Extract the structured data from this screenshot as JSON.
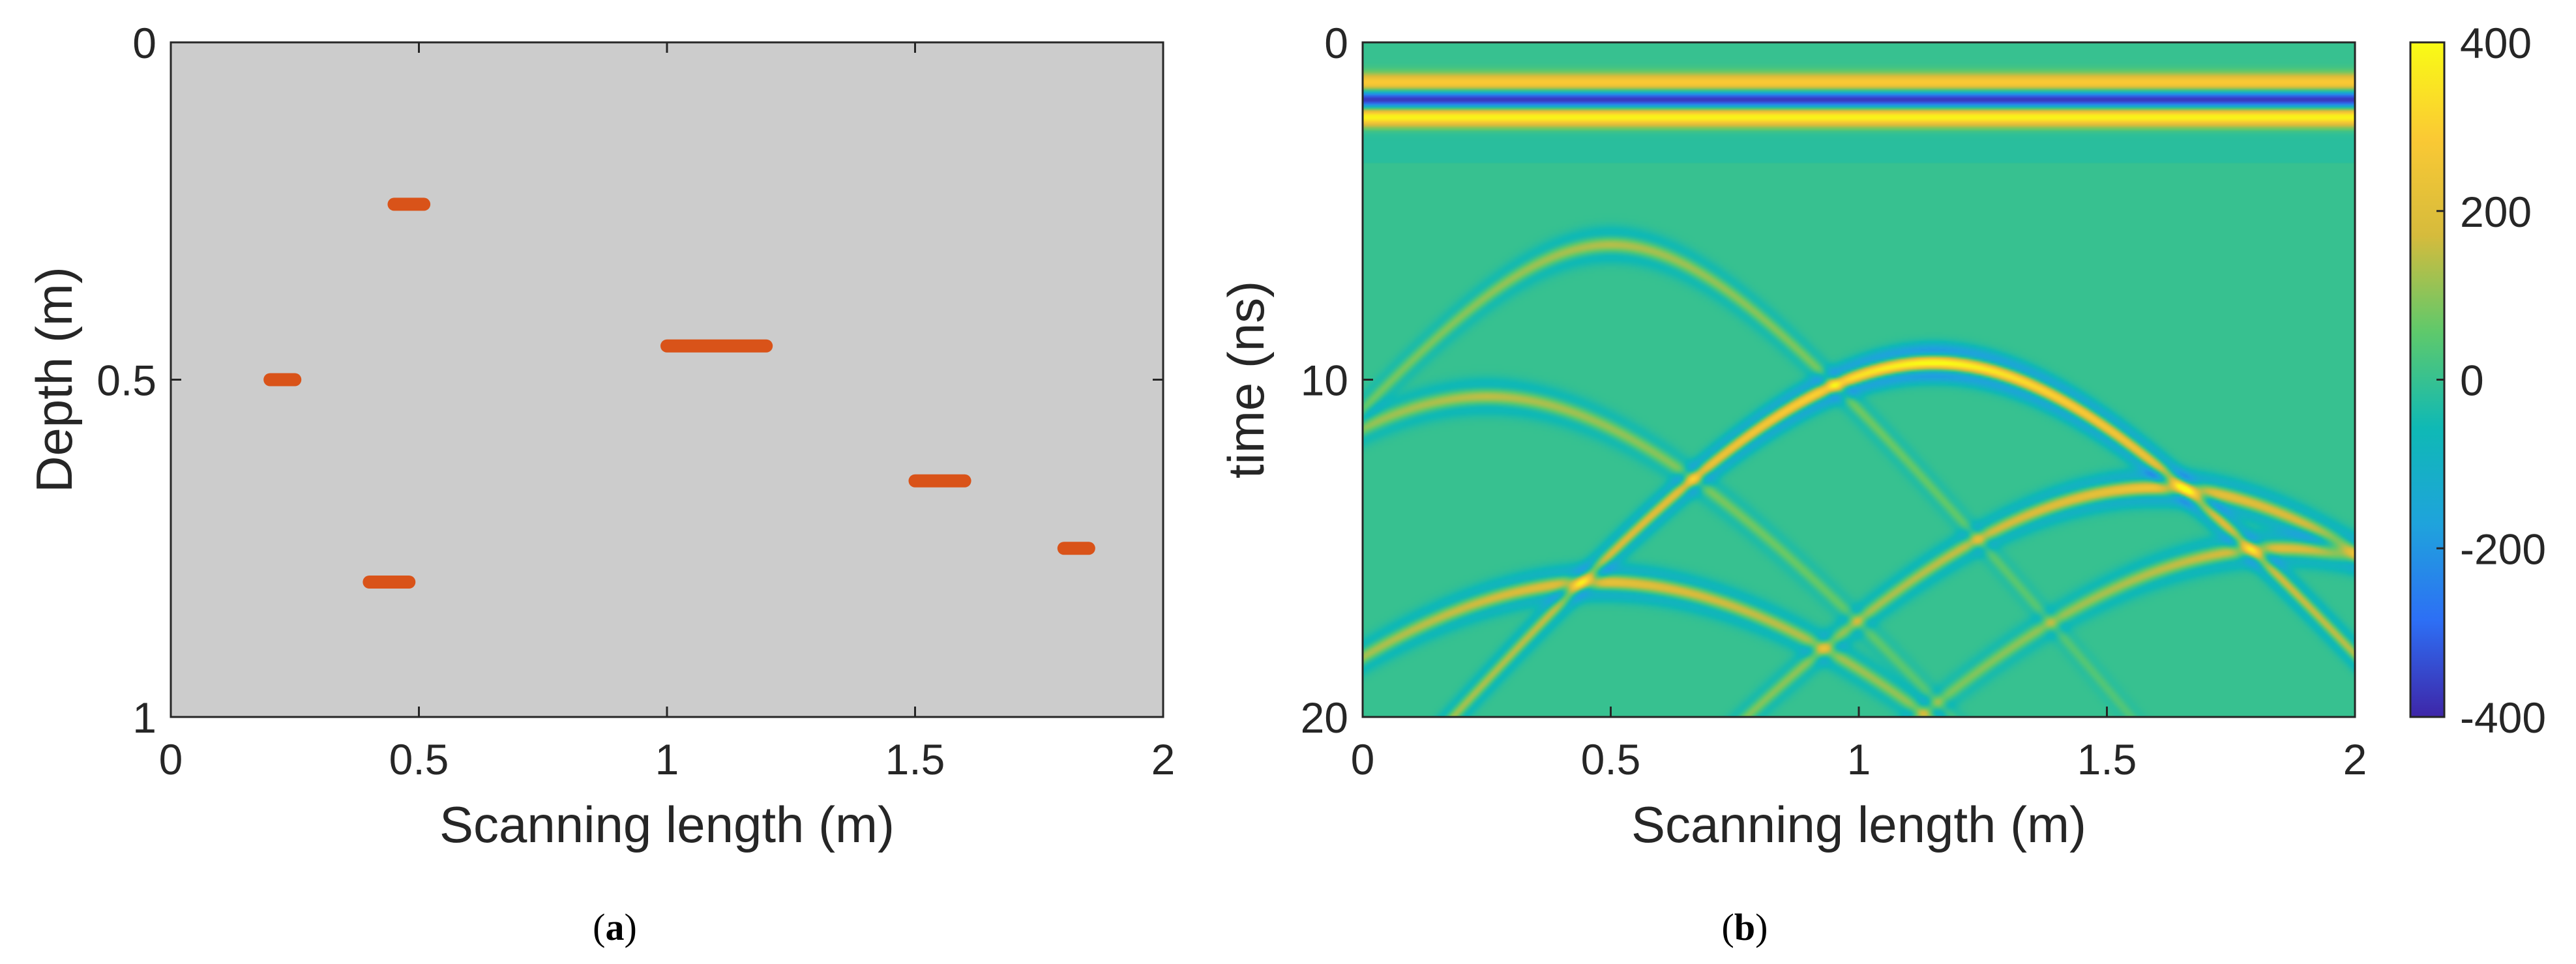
{
  "chart_data": [
    {
      "panel": "(a)",
      "type": "scatter",
      "description_mark": "horizontal target segments",
      "xlabel": "Scanning length (m)",
      "ylabel": "Depth (m)",
      "xlim": [
        0,
        2
      ],
      "ylim": [
        0,
        1
      ],
      "y_reversed": true,
      "xticks": [
        "0",
        "0.5",
        "1",
        "1.5",
        "2"
      ],
      "xtick_values": [
        0,
        0.5,
        1,
        1.5,
        2
      ],
      "yticks": [
        "0",
        "0.5",
        "1"
      ],
      "ytick_values": [
        0,
        0.5,
        1
      ],
      "background_color": "#cccccc",
      "marker_color": "#d95319",
      "segments": [
        {
          "x0": 0.2,
          "x1": 0.25,
          "depth": 0.5
        },
        {
          "x0": 0.45,
          "x1": 0.51,
          "depth": 0.24
        },
        {
          "x0": 0.4,
          "x1": 0.48,
          "depth": 0.8
        },
        {
          "x0": 1.0,
          "x1": 1.2,
          "depth": 0.45
        },
        {
          "x0": 1.5,
          "x1": 1.6,
          "depth": 0.65
        },
        {
          "x0": 1.8,
          "x1": 1.85,
          "depth": 0.75
        }
      ]
    },
    {
      "panel": "(b)",
      "type": "heatmap",
      "description_mark": "GPR B-scan with hyperbolic reflections",
      "xlabel": "Scanning length (m)",
      "ylabel": "time (ns)",
      "xlim": [
        0,
        2
      ],
      "ylim": [
        0,
        20
      ],
      "y_reversed": true,
      "xticks": [
        "0",
        "0.5",
        "1",
        "1.5",
        "2"
      ],
      "xtick_values": [
        0,
        0.5,
        1,
        1.5,
        2
      ],
      "yticks": [
        "0",
        "10",
        "20"
      ],
      "ytick_values": [
        0,
        10,
        20
      ],
      "colorbar": {
        "min": -400,
        "max": 400,
        "ticks": [
          "400",
          "200",
          "0",
          "-200",
          "-400"
        ],
        "tick_values": [
          400,
          200,
          0,
          -200,
          -400
        ],
        "colormap": "parula",
        "stops": [
          "#3e26a8",
          "#2d6ff5",
          "#1fa3dc",
          "#0fb9b5",
          "#5fc96b",
          "#d6bb3c",
          "#fac934",
          "#f9fb15"
        ]
      },
      "direct_wave": {
        "times_ns": [
          1.2,
          1.7,
          2.2
        ],
        "amplitudes": [
          300,
          -400,
          400
        ]
      },
      "hyperbolas": [
        {
          "apex_x": 0.5,
          "apex_t": 6.0,
          "amplitude": 140
        },
        {
          "apex_x": 0.25,
          "apex_t": 10.5,
          "amplitude": 150
        },
        {
          "apex_x": 1.15,
          "apex_t": 9.5,
          "amplitude": 420
        },
        {
          "apex_x": 1.6,
          "apex_t": 13.2,
          "amplitude": 260
        },
        {
          "apex_x": 0.48,
          "apex_t": 16.0,
          "amplitude": 230
        },
        {
          "apex_x": 1.85,
          "apex_t": 15.0,
          "amplitude": 200
        }
      ]
    }
  ],
  "captions": {
    "a_open": "(",
    "a_letter": "a",
    "a_close": ")",
    "b_open": "(",
    "b_letter": "b",
    "b_close": ")"
  }
}
